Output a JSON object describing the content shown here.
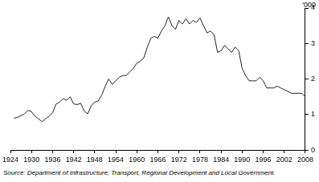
{
  "chart_data": {
    "type": "line",
    "ylabel": "'000",
    "source": "Source: Department of Infrastructure, Transport, Regional Development and Local Government.",
    "color": "#222222",
    "x": [
      1925,
      1926,
      1927,
      1928,
      1929,
      1930,
      1931,
      1932,
      1933,
      1934,
      1935,
      1936,
      1937,
      1938,
      1939,
      1940,
      1941,
      1942,
      1943,
      1944,
      1945,
      1946,
      1947,
      1948,
      1949,
      1950,
      1951,
      1952,
      1953,
      1954,
      1955,
      1956,
      1957,
      1958,
      1959,
      1960,
      1961,
      1962,
      1963,
      1964,
      1965,
      1966,
      1967,
      1968,
      1969,
      1970,
      1971,
      1972,
      1973,
      1974,
      1975,
      1976,
      1977,
      1978,
      1979,
      1980,
      1981,
      1982,
      1983,
      1984,
      1985,
      1986,
      1987,
      1988,
      1989,
      1990,
      1991,
      1992,
      1993,
      1994,
      1995,
      1996,
      1997,
      1998,
      1999,
      2000,
      2001,
      2002,
      2003,
      2004,
      2005,
      2006,
      2007,
      2008
    ],
    "values": [
      0.9,
      0.92,
      0.97,
      1.02,
      1.12,
      1.08,
      0.95,
      0.88,
      0.8,
      0.88,
      0.95,
      1.05,
      1.3,
      1.35,
      1.45,
      1.4,
      1.5,
      1.3,
      1.28,
      1.32,
      1.1,
      1.02,
      1.25,
      1.35,
      1.38,
      1.55,
      1.8,
      2.0,
      1.85,
      1.95,
      2.05,
      2.1,
      2.1,
      2.2,
      2.3,
      2.45,
      2.5,
      2.6,
      2.9,
      3.15,
      3.2,
      3.15,
      3.35,
      3.5,
      3.75,
      3.5,
      3.4,
      3.65,
      3.55,
      3.7,
      3.55,
      3.65,
      3.6,
      3.72,
      3.5,
      3.3,
      3.35,
      3.25,
      2.75,
      2.8,
      2.95,
      2.85,
      2.75,
      2.9,
      2.8,
      2.3,
      2.1,
      1.95,
      1.95,
      1.95,
      2.05,
      1.95,
      1.75,
      1.75,
      1.75,
      1.8,
      1.75,
      1.7,
      1.65,
      1.6,
      1.6,
      1.6,
      1.6,
      1.5
    ],
    "xlim": [
      1924,
      2008
    ],
    "xticks": [
      1924,
      1930,
      1936,
      1942,
      1948,
      1954,
      1960,
      1966,
      1972,
      1978,
      1984,
      1990,
      1996,
      2002,
      2008
    ],
    "ylim": [
      0,
      4
    ],
    "yticks": [
      0,
      1,
      2,
      3,
      4
    ],
    "grid": false
  }
}
